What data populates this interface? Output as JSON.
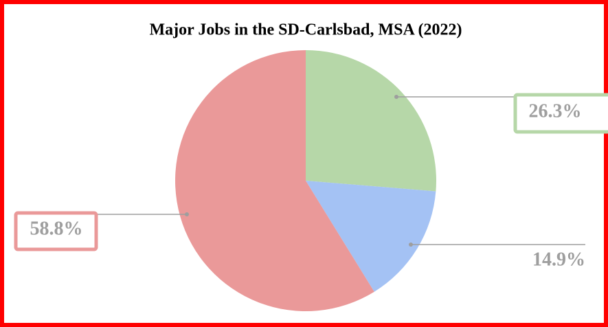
{
  "chart_data": {
    "type": "pie",
    "title": "Major Jobs in the SD-Carlsbad, MSA (2022)",
    "values": [
      26.3,
      14.9,
      58.8
    ],
    "value_labels": [
      "26.3%",
      "14.9%",
      "58.8%"
    ],
    "colors": [
      "#b6d7a8",
      "#a4c2f4",
      "#ea9999"
    ]
  }
}
